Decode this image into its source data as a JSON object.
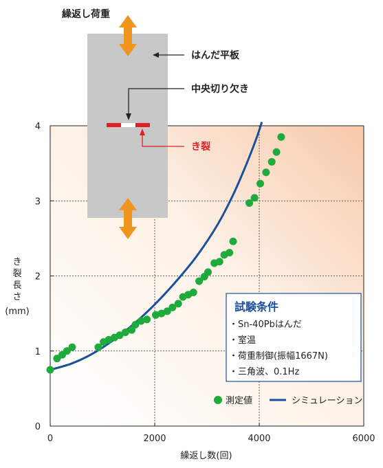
{
  "chart_data": {
    "type": "scatter",
    "xlabel": "繰返し数(回)",
    "ylabel_lines": [
      "き",
      "裂",
      "長",
      "さ",
      "(mm)"
    ],
    "xlim": [
      0,
      6000
    ],
    "ylim": [
      0,
      4
    ],
    "x_ticks": [
      "0",
      "2000",
      "4000",
      "6000"
    ],
    "y_ticks": [
      "0",
      "1",
      "2",
      "3",
      "4"
    ],
    "grid": true,
    "series": [
      {
        "name": "測定値",
        "kind": "points",
        "color": "#1faa3c",
        "points": [
          [
            0,
            0.75
          ],
          [
            130,
            0.9
          ],
          [
            230,
            0.95
          ],
          [
            320,
            1.0
          ],
          [
            420,
            1.05
          ],
          [
            920,
            1.05
          ],
          [
            1020,
            1.12
          ],
          [
            1120,
            1.15
          ],
          [
            1230,
            1.18
          ],
          [
            1330,
            1.21
          ],
          [
            1440,
            1.25
          ],
          [
            1560,
            1.28
          ],
          [
            1630,
            1.35
          ],
          [
            1740,
            1.4
          ],
          [
            1850,
            1.42
          ],
          [
            2020,
            1.48
          ],
          [
            2130,
            1.5
          ],
          [
            2240,
            1.53
          ],
          [
            2340,
            1.58
          ],
          [
            2450,
            1.63
          ],
          [
            2540,
            1.72
          ],
          [
            2640,
            1.75
          ],
          [
            2740,
            1.78
          ],
          [
            2850,
            1.93
          ],
          [
            2950,
            1.99
          ],
          [
            3020,
            2.05
          ],
          [
            3140,
            2.17
          ],
          [
            3240,
            2.19
          ],
          [
            3330,
            2.28
          ],
          [
            3430,
            2.31
          ],
          [
            3500,
            2.46
          ],
          [
            3810,
            2.97
          ],
          [
            3910,
            3.04
          ],
          [
            4020,
            3.23
          ],
          [
            4130,
            3.38
          ],
          [
            4240,
            3.52
          ],
          [
            4330,
            3.65
          ],
          [
            4420,
            3.85
          ]
        ]
      },
      {
        "name": "シミュレーション",
        "kind": "curve",
        "color": "#1a4f9c",
        "points": [
          [
            0,
            0.75
          ],
          [
            400,
            0.83
          ],
          [
            800,
            0.96
          ],
          [
            1200,
            1.14
          ],
          [
            1600,
            1.36
          ],
          [
            2000,
            1.62
          ],
          [
            2400,
            1.92
          ],
          [
            2800,
            2.26
          ],
          [
            3200,
            2.68
          ],
          [
            3500,
            3.08
          ],
          [
            3750,
            3.48
          ],
          [
            3950,
            3.84
          ],
          [
            4050,
            4.05
          ]
        ]
      }
    ],
    "legend_position": "bottom-right",
    "conditions": {
      "title": "試験条件",
      "items": [
        "・Sn-40Pbはんだ",
        "・室温",
        "・荷重制御(振幅1667N)",
        "・三角波、0.1Hz"
      ]
    },
    "inset": {
      "load_label": "繰返し荷重",
      "plate_label": "はんだ平板",
      "notch_label": "中央切り欠き",
      "crack_label": "き裂",
      "arrow_color": "#f0961e",
      "crack_color": "#e02026",
      "plate_color": "#c8c8c8"
    }
  }
}
